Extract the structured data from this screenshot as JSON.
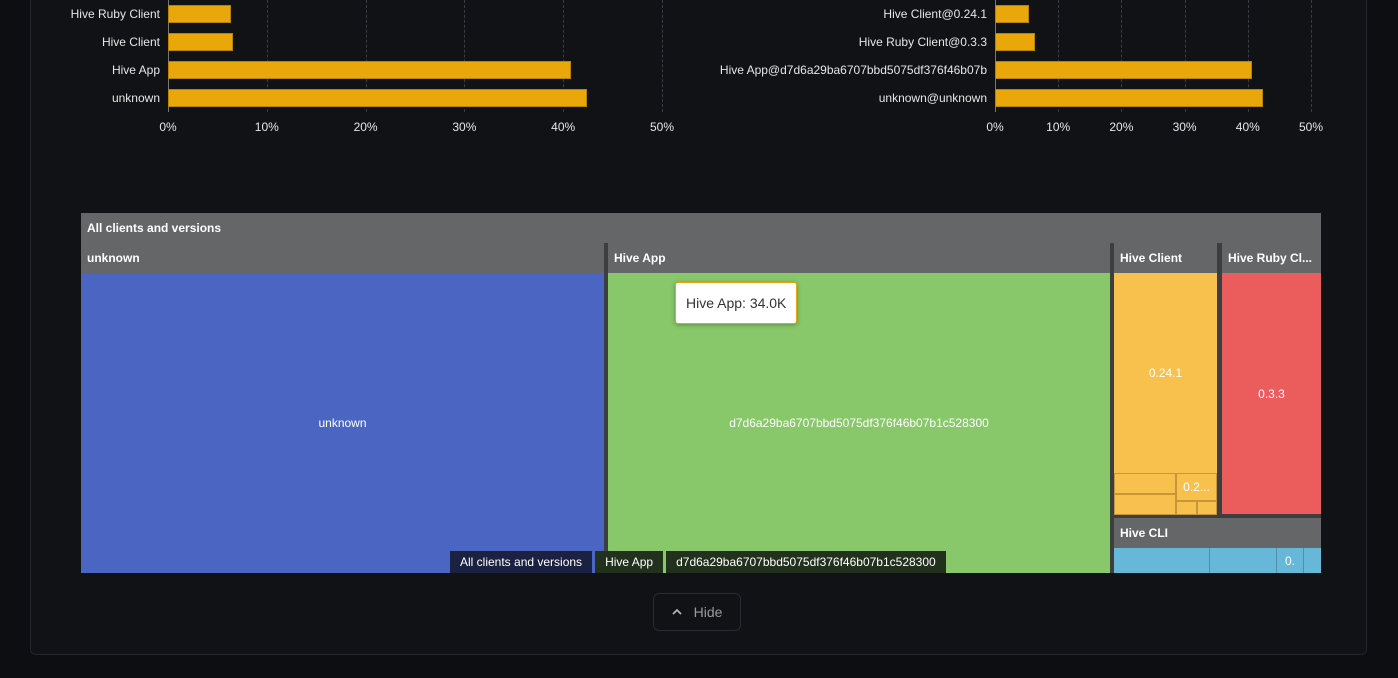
{
  "chart_data": [
    {
      "type": "bar",
      "orientation": "horizontal",
      "categories": [
        "Hive Ruby Client",
        "Hive Client",
        "Hive App",
        "unknown"
      ],
      "values": [
        6.4,
        6.6,
        40.8,
        42.4
      ],
      "xticks": [
        "0%",
        "10%",
        "20%",
        "30%",
        "40%",
        "50%"
      ],
      "xlim": [
        0,
        50
      ],
      "grid": true,
      "color": "#e9a70a"
    },
    {
      "type": "bar",
      "orientation": "horizontal",
      "categories": [
        "Hive Client@0.24.1",
        "Hive Ruby Client@0.3.3",
        "Hive App@d7d6a29ba6707bbd5075df376f46b07b",
        "unknown@unknown"
      ],
      "values": [
        5.4,
        6.3,
        40.7,
        42.4
      ],
      "xticks": [
        "0%",
        "10%",
        "20%",
        "30%",
        "40%",
        "50%"
      ],
      "xlim": [
        0,
        50
      ],
      "grid": true,
      "color": "#e9a70a"
    }
  ],
  "treemap": {
    "root": "All clients and versions",
    "groups": [
      {
        "name": "unknown",
        "color": "#4b66c2",
        "children": [
          "unknown"
        ]
      },
      {
        "name": "Hive App",
        "color": "#88c76a",
        "children": [
          "d7d6a29ba6707bbd5075df376f46b07b1c528300"
        ]
      },
      {
        "name": "Hive Client",
        "color": "#f8c14e",
        "children": [
          "0.24.1",
          "0.2..."
        ]
      },
      {
        "name": "Hive Ruby Cl...",
        "color": "#eb5c5c",
        "children": [
          "0.3.3"
        ]
      },
      {
        "name": "Hive CLI",
        "color": "#67b7d9",
        "children": [
          "0."
        ]
      }
    ],
    "tooltip": "Hive App: 34.0K",
    "breadcrumbs": [
      "All clients and versions",
      "Hive App",
      "d7d6a29ba6707bbd5075df376f46b07b1c528300"
    ]
  },
  "hide_button": {
    "label": "Hide",
    "icon": "chevron-up-icon"
  }
}
